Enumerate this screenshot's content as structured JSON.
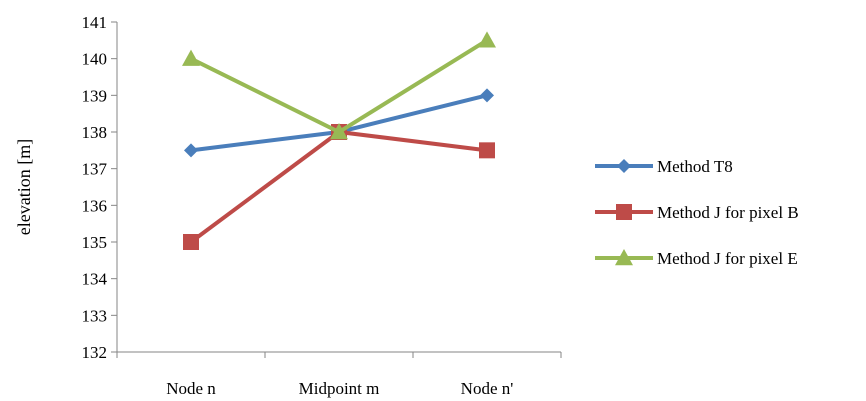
{
  "chart_data": {
    "type": "line",
    "categories": [
      "Node n",
      "Midpoint m",
      "Node n'"
    ],
    "ylabel": "elevation [m]",
    "xlabel": "",
    "ylim": [
      132,
      141
    ],
    "yticks": [
      132,
      133,
      134,
      135,
      136,
      137,
      138,
      139,
      140,
      141
    ],
    "grid": false,
    "legend_position": "right",
    "series": [
      {
        "name": "Method T8",
        "values": [
          137.5,
          138,
          139
        ],
        "color": "#4a7ebb",
        "marker": "diamond"
      },
      {
        "name": "Method J for pixel B",
        "values": [
          135,
          138,
          137.5
        ],
        "color": "#be4b48",
        "marker": "square"
      },
      {
        "name": "Method J for pixel E",
        "values": [
          140,
          138,
          140.5
        ],
        "color": "#98b954",
        "marker": "triangle"
      }
    ]
  }
}
